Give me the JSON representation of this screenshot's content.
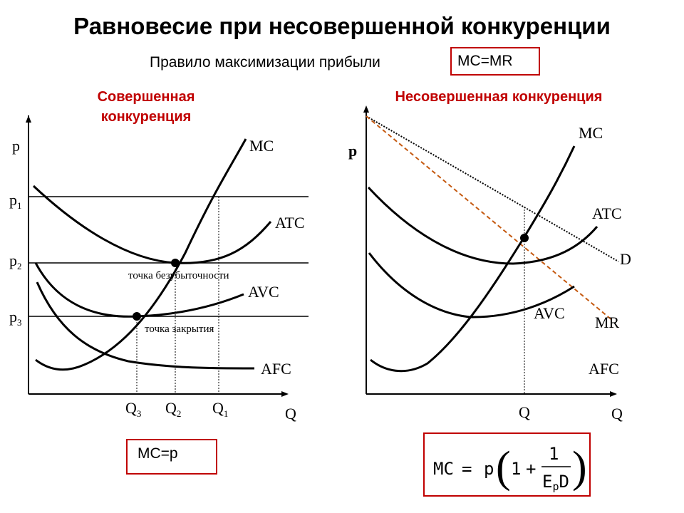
{
  "header": {
    "title": "Равновесие при несовершенной конкуренции",
    "subtitle": "Правило максимизации прибыли",
    "rule": "MC=MR"
  },
  "left_panel": {
    "title_line1": "Совершенная",
    "title_line2": "конкуренция",
    "axis_p": "p",
    "axis_q": "Q",
    "p1": "p",
    "p1_sub": "1",
    "p2": "p",
    "p2_sub": "2",
    "p3": "p",
    "p3_sub": "3",
    "q1": "Q",
    "q1_sub": "1",
    "q2": "Q",
    "q2_sub": "2",
    "q3": "Q",
    "q3_sub": "3",
    "mc_label": "MC",
    "atc_label": "ATC",
    "avc_label": "AVC",
    "afc_label": "AFC",
    "breakeven_label": "точка безубыточности",
    "shutdown_label": "точка закрытия",
    "formula": "MC=p"
  },
  "right_panel": {
    "title": "Несовершенная конкуренция",
    "axis_p": "p",
    "axis_q": "Q",
    "mc_label": "MC",
    "atc_label": "ATC",
    "avc_label": "AVC",
    "afc_label": "AFC",
    "d_label": "D",
    "mr_label": "MR",
    "q_label": "Q",
    "formula": {
      "lhs": "MC",
      "eq": "=",
      "p": "p",
      "open": "(",
      "one": "1",
      "plus": "+",
      "num": "1",
      "den_e": "E",
      "den_sub": "p",
      "den_d": "D",
      "close": ")"
    }
  },
  "colors": {
    "accent": "#c00000",
    "mr_line": "#c55a11",
    "curve": "#000000"
  }
}
